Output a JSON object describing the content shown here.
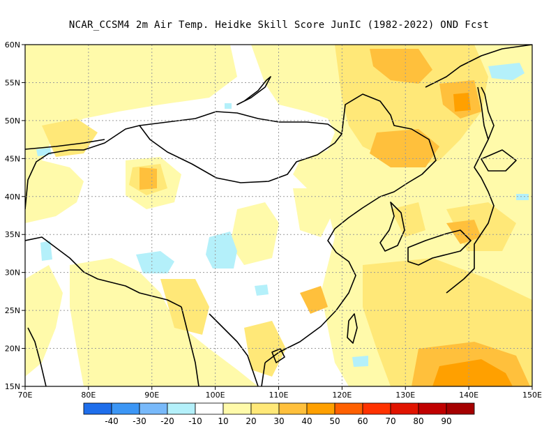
{
  "title": "NCAR_CCSM4  2m Air Temp. Heidke Skill Score JunIC (1982-2022) OND Fcst",
  "map": {
    "lon_range": [
      70,
      150
    ],
    "lat_range": [
      15,
      60
    ],
    "lon_ticks": [
      {
        "value": 70,
        "label": "70E"
      },
      {
        "value": 80,
        "label": "80E"
      },
      {
        "value": 90,
        "label": "90E"
      },
      {
        "value": 100,
        "label": "100E"
      },
      {
        "value": 110,
        "label": "110E"
      },
      {
        "value": 120,
        "label": "120E"
      },
      {
        "value": 130,
        "label": "130E"
      },
      {
        "value": 140,
        "label": "140E"
      },
      {
        "value": 150,
        "label": "150E"
      }
    ],
    "lat_ticks": [
      {
        "value": 15,
        "label": "15N"
      },
      {
        "value": 20,
        "label": "20N"
      },
      {
        "value": 25,
        "label": "25N"
      },
      {
        "value": 30,
        "label": "30N"
      },
      {
        "value": 35,
        "label": "35N"
      },
      {
        "value": 40,
        "label": "40N"
      },
      {
        "value": 45,
        "label": "45N"
      },
      {
        "value": 50,
        "label": "50N"
      },
      {
        "value": 55,
        "label": "55N"
      },
      {
        "value": 60,
        "label": "60N"
      }
    ],
    "gridlines": "dotted"
  },
  "colorbar": {
    "bins": [
      {
        "color": "#1e6eeb"
      },
      {
        "color": "#3c96f5"
      },
      {
        "color": "#78b9fa"
      },
      {
        "color": "#b4f0fa"
      },
      {
        "color": "#ffffff"
      },
      {
        "color": "#fffaaa"
      },
      {
        "color": "#ffe878"
      },
      {
        "color": "#ffc03c"
      },
      {
        "color": "#ffa000"
      },
      {
        "color": "#ff6000"
      },
      {
        "color": "#ff3200"
      },
      {
        "color": "#e11400"
      },
      {
        "color": "#c00000"
      },
      {
        "color": "#a50000"
      }
    ],
    "labels": [
      "-40",
      "-30",
      "-20",
      "-10",
      "10",
      "20",
      "30",
      "40",
      "50",
      "60",
      "70",
      "80",
      "90"
    ]
  },
  "colors": {
    "light_yellow": "#fffaaa",
    "yellow": "#ffe878",
    "light_orange": "#ffc03c",
    "orange": "#ffa000",
    "light_cyan": "#b4f0fa"
  }
}
